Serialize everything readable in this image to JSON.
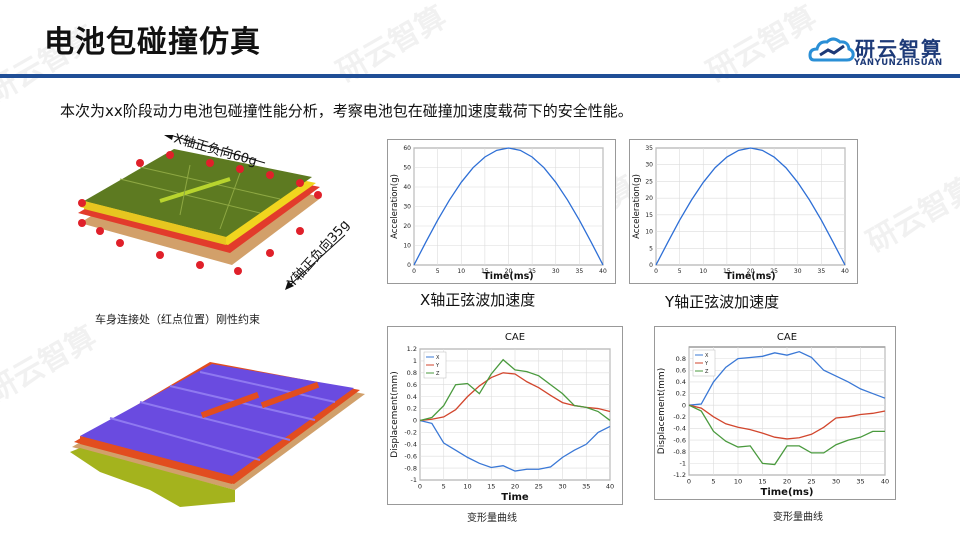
{
  "header": {
    "title": "电池包碰撞仿真",
    "logo_text": "研云智算",
    "logo_subtext": "YANYUNZHISUAN"
  },
  "intro": "本次为xx阶段动力电池包碰撞性能分析，考察电池包在碰撞加速度载荷下的安全性能。",
  "watermark": "研云智算",
  "model_top": {
    "x_label": "X轴正负向60g",
    "y_label": "Y轴正负向35g",
    "caption": "车身连接处（红点位置）刚性约束"
  },
  "accel_captions": {
    "x": "X轴正弦波加速度",
    "y": "Y轴正弦波加速度"
  },
  "disp_captions": {
    "left": "变形量曲线",
    "right": "变形量曲线"
  },
  "colors": {
    "accent": "#1f4e96",
    "series_x": "#3a78d6",
    "series_y": "#d2462d",
    "series_z": "#4a9a3e",
    "accel_line": "#2e6fd6"
  },
  "chart_data": [
    {
      "id": "accel-x",
      "type": "line",
      "xlabel": "Time(ms)",
      "ylabel": "Acceleration(g)",
      "xlim": [
        0,
        40
      ],
      "ylim": [
        0,
        60
      ],
      "xticks": [
        0,
        5,
        10,
        15,
        20,
        25,
        30,
        35,
        40
      ],
      "yticks": [
        0,
        10,
        20,
        30,
        40,
        50,
        60
      ],
      "grid": true,
      "series": [
        {
          "x": [
            0,
            2.5,
            5,
            7.5,
            10,
            12.5,
            15,
            17.5,
            20,
            22.5,
            25,
            27.5,
            30,
            32.5,
            35,
            37.5,
            40
          ],
          "y": [
            0,
            11.7,
            23,
            33.3,
            42.4,
            49.9,
            55.4,
            58.8,
            60,
            58.8,
            55.4,
            49.9,
            42.4,
            33.3,
            23,
            11.7,
            0
          ]
        }
      ]
    },
    {
      "id": "accel-y",
      "type": "line",
      "xlabel": "Time(ms)",
      "ylabel": "Acceleration(g)",
      "xlim": [
        0,
        40
      ],
      "ylim": [
        0,
        35
      ],
      "xticks": [
        0,
        5,
        10,
        15,
        20,
        25,
        30,
        35,
        40
      ],
      "yticks": [
        0,
        5,
        10,
        15,
        20,
        25,
        30,
        35
      ],
      "grid": true,
      "series": [
        {
          "x": [
            0,
            2.5,
            5,
            7.5,
            10,
            12.5,
            15,
            17.5,
            20,
            22.5,
            25,
            27.5,
            30,
            32.5,
            35,
            37.5,
            40
          ],
          "y": [
            0,
            6.8,
            13.4,
            19.4,
            24.7,
            29.1,
            32.3,
            34.3,
            35,
            34.3,
            32.3,
            29.1,
            24.7,
            19.4,
            13.4,
            6.8,
            0
          ]
        }
      ]
    },
    {
      "id": "disp-x",
      "type": "line",
      "title": "CAE",
      "xlabel": "Time",
      "ylabel": "Displacement(mm)",
      "xlim": [
        0,
        40
      ],
      "ylim": [
        -1,
        1.2
      ],
      "xticks": [
        0,
        5,
        10,
        15,
        20,
        25,
        30,
        35,
        40
      ],
      "yticks": [
        -1,
        -0.8,
        -0.6,
        -0.4,
        -0.2,
        0,
        0.2,
        0.4,
        0.6,
        0.8,
        1,
        1.2
      ],
      "grid": true,
      "legend": "top-left",
      "series": [
        {
          "name": "X",
          "x": [
            0,
            2.5,
            5,
            7.5,
            10,
            12.5,
            15,
            17.5,
            20,
            22.5,
            25,
            27.5,
            30,
            32.5,
            35,
            37.5,
            40
          ],
          "y": [
            0,
            -0.05,
            -0.38,
            -0.5,
            -0.62,
            -0.72,
            -0.79,
            -0.76,
            -0.85,
            -0.82,
            -0.82,
            -0.78,
            -0.62,
            -0.5,
            -0.4,
            -0.2,
            -0.1
          ]
        },
        {
          "name": "Y",
          "x": [
            0,
            2.5,
            5,
            7.5,
            10,
            12.5,
            15,
            17.5,
            20,
            22.5,
            25,
            27.5,
            30,
            32.5,
            35,
            37.5,
            40
          ],
          "y": [
            0,
            0.02,
            0.06,
            0.18,
            0.4,
            0.58,
            0.72,
            0.8,
            0.78,
            0.65,
            0.55,
            0.42,
            0.3,
            0.25,
            0.22,
            0.2,
            0.15
          ]
        },
        {
          "name": "Z",
          "x": [
            0,
            2.5,
            5,
            7.5,
            10,
            12.5,
            15,
            17.5,
            20,
            22.5,
            25,
            27.5,
            30,
            32.5,
            35,
            37.5,
            40
          ],
          "y": [
            0,
            0.05,
            0.25,
            0.6,
            0.62,
            0.45,
            0.78,
            1.02,
            0.85,
            0.82,
            0.75,
            0.6,
            0.45,
            0.25,
            0.22,
            0.15,
            0
          ]
        }
      ]
    },
    {
      "id": "disp-y",
      "type": "line",
      "title": "CAE",
      "xlabel": "Time(ms)",
      "ylabel": "Displacement(mm)",
      "xlim": [
        0,
        40
      ],
      "ylim": [
        -1.2,
        1
      ],
      "xticks": [
        0,
        5,
        10,
        15,
        20,
        25,
        30,
        35,
        40
      ],
      "yticks": [
        -1.2,
        -1,
        -0.8,
        -0.6,
        -0.4,
        -0.2,
        0,
        0.2,
        0.4,
        0.6,
        0.8
      ],
      "grid": true,
      "legend": "top-left",
      "series": [
        {
          "name": "X",
          "x": [
            0,
            2.5,
            5,
            7.5,
            10,
            12.5,
            15,
            17.5,
            20,
            22.5,
            25,
            27.5,
            30,
            32.5,
            35,
            37.5,
            40
          ],
          "y": [
            0,
            0.02,
            0.4,
            0.65,
            0.8,
            0.82,
            0.84,
            0.9,
            0.86,
            0.92,
            0.82,
            0.6,
            0.5,
            0.4,
            0.28,
            0.2,
            0.12
          ]
        },
        {
          "name": "Y",
          "x": [
            0,
            2.5,
            5,
            7.5,
            10,
            12.5,
            15,
            17.5,
            20,
            22.5,
            25,
            27.5,
            30,
            32.5,
            35,
            37.5,
            40
          ],
          "y": [
            0,
            -0.05,
            -0.2,
            -0.32,
            -0.38,
            -0.42,
            -0.48,
            -0.55,
            -0.58,
            -0.56,
            -0.5,
            -0.38,
            -0.22,
            -0.2,
            -0.16,
            -0.14,
            -0.1
          ]
        },
        {
          "name": "Z",
          "x": [
            0,
            2.5,
            5,
            7.5,
            10,
            12.5,
            15,
            17.5,
            20,
            22.5,
            25,
            27.5,
            30,
            32.5,
            35,
            37.5,
            40
          ],
          "y": [
            0,
            -0.1,
            -0.45,
            -0.62,
            -0.72,
            -0.7,
            -1.0,
            -1.02,
            -0.7,
            -0.7,
            -0.82,
            -0.82,
            -0.68,
            -0.6,
            -0.55,
            -0.45,
            -0.45
          ]
        }
      ]
    }
  ]
}
